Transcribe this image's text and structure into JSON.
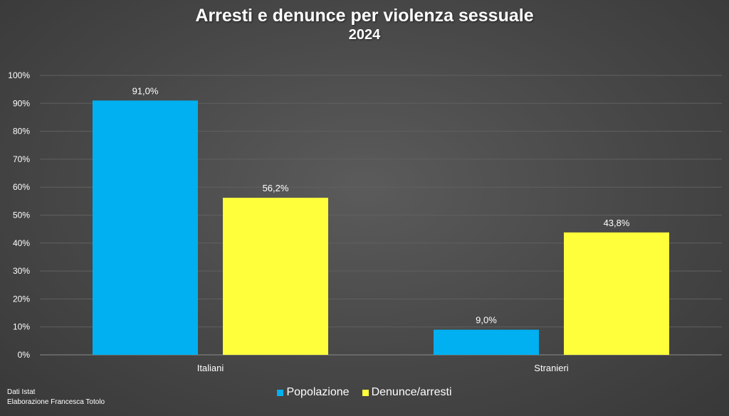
{
  "chart_data": {
    "type": "bar",
    "title": "Arresti e denunce per violenza sessuale",
    "subtitle": "2024",
    "categories": [
      "Italiani",
      "Stranieri"
    ],
    "series": [
      {
        "name": "Popolazione",
        "values": [
          91.0,
          9.0
        ],
        "labels": [
          "91,0%",
          "9,0%"
        ],
        "color": "#00b0f0"
      },
      {
        "name": "Denunce/arresti",
        "values": [
          56.2,
          43.8
        ],
        "labels": [
          "56,2%",
          "43,8%"
        ],
        "color": "#ffff3c"
      }
    ],
    "ylim": [
      0,
      100
    ],
    "yticks": [
      0,
      10,
      20,
      30,
      40,
      50,
      60,
      70,
      80,
      90,
      100
    ],
    "ytick_labels": [
      "0%",
      "10%",
      "20%",
      "30%",
      "40%",
      "50%",
      "60%",
      "70%",
      "80%",
      "90%",
      "100%"
    ],
    "grid": true,
    "legend_position": "bottom"
  },
  "source": {
    "line1": "Dati Istat",
    "line2": "Elaborazione Francesca Totolo"
  }
}
